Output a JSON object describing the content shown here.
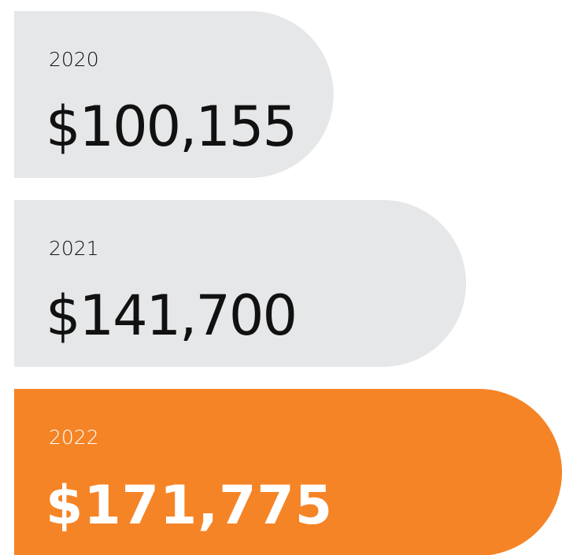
{
  "chart_data": {
    "type": "bar",
    "categories": [
      "2020",
      "2021",
      "2022"
    ],
    "values": [
      100155,
      141700,
      171775
    ],
    "value_labels": [
      "$100,155",
      "$141,700",
      "$171,775"
    ],
    "colors": [
      "#e6e7e8",
      "#e6e7e8",
      "#f58426"
    ],
    "label_colors": [
      "#111111",
      "#111111",
      "#ffffff"
    ],
    "bold": [
      false,
      false,
      true
    ]
  }
}
